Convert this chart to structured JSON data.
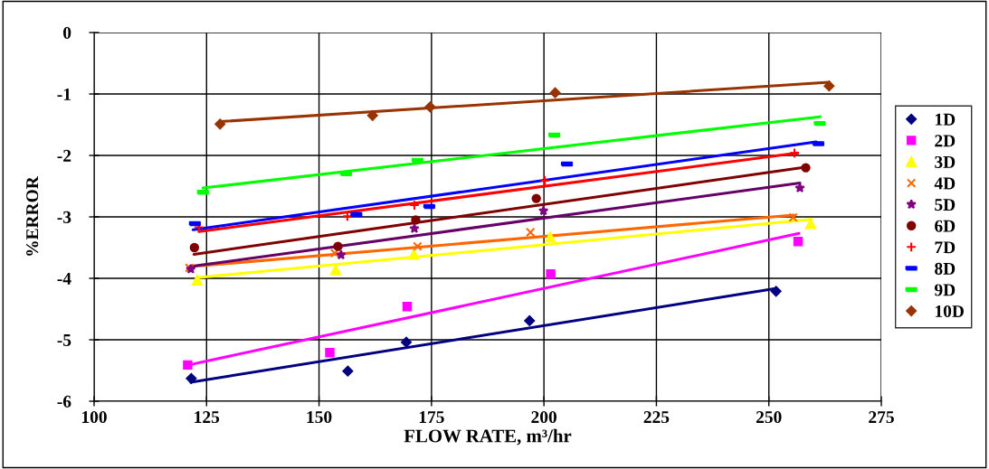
{
  "chart_data": {
    "type": "scatter",
    "xlabel": "FLOW RATE, m³/hr",
    "ylabel": "%ERROR",
    "xlim": [
      100,
      275
    ],
    "xticks": [
      100,
      125,
      150,
      175,
      200,
      225,
      250,
      275
    ],
    "ylim": [
      -6,
      0
    ],
    "yticks": [
      -6,
      -5,
      -4,
      -3,
      -2,
      -1,
      0
    ],
    "grid": true,
    "legend": "right",
    "series": [
      {
        "name": "1D",
        "color": "#000080",
        "marker": "diamond",
        "x": [
          121.6,
          156.4,
          169.4,
          196.8,
          251.6
        ],
        "values": [
          -5.63,
          -5.51,
          -5.04,
          -4.69,
          -4.21
        ]
      },
      {
        "name": "2D",
        "color": "#ff00ff",
        "marker": "square",
        "x": [
          120.8,
          152.4,
          169.6,
          201.5,
          256.5
        ],
        "values": [
          -5.41,
          -5.21,
          -4.46,
          -3.93,
          -3.4
        ]
      },
      {
        "name": "3D",
        "color": "#ffff00",
        "marker": "triangle",
        "x": [
          122.9,
          153.7,
          171.1,
          201.4,
          259.3
        ],
        "values": [
          -4.03,
          -3.86,
          -3.61,
          -3.33,
          -3.11
        ]
      },
      {
        "name": "4D",
        "color": "#ff6600",
        "marker": "cross",
        "x": [
          121.2,
          153.5,
          171.9,
          197,
          255.4
        ],
        "values": [
          -3.83,
          -3.59,
          -3.48,
          -3.25,
          -3.01
        ]
      },
      {
        "name": "5D",
        "color": "#800080",
        "marker": "star",
        "x": [
          121.5,
          154.9,
          171.2,
          199.9,
          256.9
        ],
        "values": [
          -3.85,
          -3.62,
          -3.19,
          -2.9,
          -2.53
        ]
      },
      {
        "name": "6D",
        "color": "#800000",
        "marker": "circle",
        "x": [
          122.3,
          154.2,
          171.5,
          198.3,
          258.2
        ],
        "values": [
          -3.5,
          -3.48,
          -3.05,
          -2.7,
          -2.2
        ]
      },
      {
        "name": "7D",
        "color": "#ff0000",
        "marker": "plus",
        "x": [
          123.3,
          156.3,
          171.2,
          200.2,
          255.7
        ],
        "values": [
          -3.17,
          -2.99,
          -2.81,
          -2.41,
          -1.96
        ]
      },
      {
        "name": "8D",
        "color": "#0000ff",
        "x": [
          122.4,
          158.3,
          174.5,
          205.1,
          261
        ],
        "values": [
          -3.11,
          -2.96,
          -2.83,
          -2.14,
          -1.81
        ]
      },
      {
        "name": "9D",
        "color": "#00ff00",
        "x": [
          124.2,
          156,
          171.9,
          202.3,
          261.3
        ],
        "values": [
          -2.6,
          -2.3,
          -2.08,
          -1.67,
          -1.48
        ]
      },
      {
        "name": "10D",
        "color": "#993300",
        "marker": "diamond",
        "x": [
          128,
          161.9,
          174.7,
          202.5,
          263.4
        ],
        "values": [
          -1.49,
          -1.35,
          -1.21,
          -0.98,
          -0.87
        ]
      },
      {
        "type": "line",
        "color": "#000080",
        "x": [
          121.5,
          251.2
        ],
        "values": [
          -5.69,
          -4.17
        ]
      },
      {
        "type": "line",
        "color": "#ff00ff",
        "x": [
          121,
          256.7
        ],
        "values": [
          -5.41,
          -3.27
        ]
      },
      {
        "type": "line",
        "color": "#ffff00",
        "x": [
          122.8,
          259.4
        ],
        "values": [
          -3.99,
          -3.04
        ]
      },
      {
        "type": "line",
        "color": "#ff6600",
        "x": [
          121.5,
          255.5
        ],
        "values": [
          -3.81,
          -2.97
        ]
      },
      {
        "type": "line",
        "color": "#660066",
        "x": [
          121.2,
          256.9
        ],
        "values": [
          -3.81,
          -2.45
        ]
      },
      {
        "type": "line",
        "color": "#800000",
        "x": [
          122.2,
          258.1
        ],
        "values": [
          -3.61,
          -2.19
        ]
      },
      {
        "type": "line",
        "color": "#ff0000",
        "x": [
          123.3,
          256.4
        ],
        "values": [
          -3.24,
          -1.96
        ]
      },
      {
        "type": "line",
        "color": "#0000ff",
        "x": [
          122,
          260.5
        ],
        "values": [
          -3.21,
          -1.78
        ]
      },
      {
        "type": "line",
        "color": "#00ff00",
        "x": [
          124.2,
          261.4
        ],
        "values": [
          -2.53,
          -1.37
        ]
      },
      {
        "type": "line",
        "color": "#993300",
        "x": [
          127.9,
          263.4
        ],
        "values": [
          -1.45,
          -0.81
        ]
      }
    ]
  }
}
